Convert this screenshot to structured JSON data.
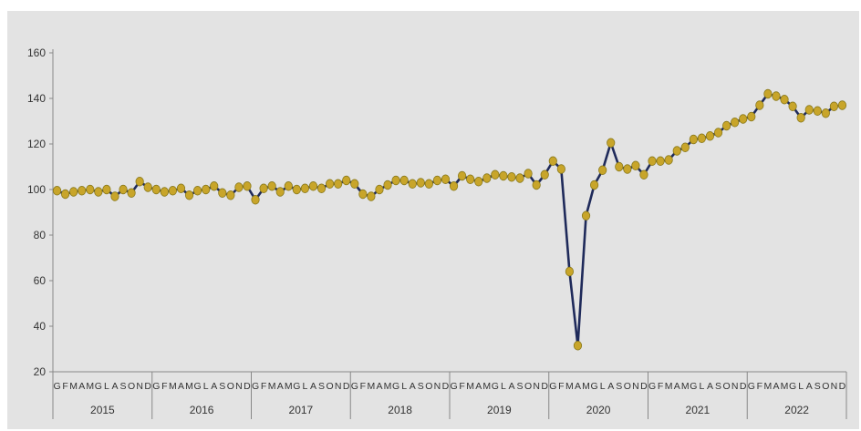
{
  "chart_data": {
    "type": "line",
    "title": "",
    "xlabel": "",
    "ylabel": "",
    "ylim": [
      20,
      160
    ],
    "yticks": [
      20,
      40,
      60,
      80,
      100,
      120,
      140,
      160
    ],
    "grid": false,
    "legend": "none",
    "colors": {
      "line": "#1f2a5a",
      "marker": "#c8a52a",
      "marker_edge": "#8a7a1c",
      "background": "#e3e3e3",
      "axis": "#888888"
    },
    "month_labels": [
      "G",
      "F",
      "M",
      "A",
      "M",
      "G",
      "L",
      "A",
      "S",
      "O",
      "N",
      "D"
    ],
    "years": [
      "2015",
      "2016",
      "2017",
      "2018",
      "2019",
      "2020",
      "2021",
      "2022"
    ],
    "series": [
      {
        "values": [
          99.5,
          98,
          99,
          99.5,
          100,
          99,
          100,
          97,
          100,
          98.5,
          103.5,
          101,
          100,
          99,
          99.5,
          100.5,
          97.5,
          99.5,
          100,
          101.5,
          98.5,
          97.5,
          101,
          101.5,
          95.5,
          100.5,
          101.5,
          99,
          101.5,
          100,
          100.5,
          101.5,
          100.5,
          102.5,
          102.5,
          104,
          102.5,
          98,
          97,
          100,
          102,
          104,
          104,
          102.5,
          103,
          102.5,
          104,
          104.5,
          101.5,
          106,
          104.5,
          103.5,
          105,
          106.5,
          106,
          105.5,
          105,
          107,
          102,
          106.5,
          112.5,
          109,
          64,
          31.5,
          88.5,
          102,
          108.5,
          120.5,
          110,
          109,
          110.5,
          106.5,
          112.5,
          112.5,
          113,
          117,
          118.5,
          122,
          122.5,
          123.5,
          125,
          128,
          129.5,
          131,
          132,
          137,
          142,
          141,
          139.5,
          136.5,
          131.5,
          135,
          134.5,
          133.5,
          136.5,
          137
        ]
      }
    ]
  }
}
